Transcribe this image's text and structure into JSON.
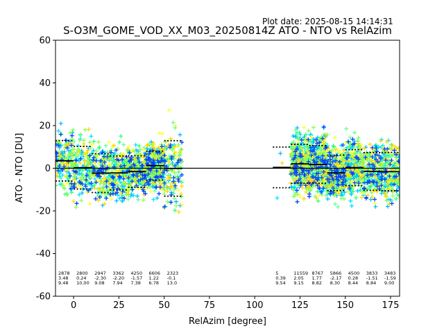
{
  "chart_data": {
    "type": "scatter",
    "title": "S-O3M_GOME_VOD_XX_M03_20250814Z ATO - NTO vs RelAzim",
    "plot_date": "Plot date: 2025-08-15 14:14:31",
    "xlabel": "RelAzim [degree]",
    "ylabel": "ATO - NTO [DU]",
    "xlim": [
      -10,
      180
    ],
    "ylim": [
      -60,
      60
    ],
    "xticks": [
      0,
      25,
      50,
      75,
      100,
      125,
      150,
      175
    ],
    "yticks": [
      -60,
      -40,
      -20,
      0,
      20,
      40,
      60
    ],
    "zero_line": 0,
    "colors": [
      "#66ff99",
      "#33ff77",
      "#00e5ff",
      "#00bfff",
      "#ffff33",
      "#ffd700",
      "#88ff55",
      "#0044ff"
    ],
    "bins": [
      {
        "x_start": -10,
        "x_end": 0,
        "count": "2878",
        "mean": "3.48",
        "std": "9.48",
        "mean_val": 3.48,
        "std_val": 9.48
      },
      {
        "x_start": 0,
        "x_end": 10,
        "count": "2800",
        "mean": "0.24",
        "std": "10.00",
        "mean_val": 0.24,
        "std_val": 10.0
      },
      {
        "x_start": 10,
        "x_end": 20,
        "count": "2947",
        "mean": "-2.30",
        "std": "9.08",
        "mean_val": -2.3,
        "std_val": 9.08
      },
      {
        "x_start": 20,
        "x_end": 30,
        "count": "3362",
        "mean": "-2.20",
        "std": "7.94",
        "mean_val": -2.2,
        "std_val": 7.94
      },
      {
        "x_start": 30,
        "x_end": 40,
        "count": "4250",
        "mean": "-1.57",
        "std": "7.38",
        "mean_val": -1.57,
        "std_val": 7.38
      },
      {
        "x_start": 40,
        "x_end": 50,
        "count": "6606",
        "mean": "1.22",
        "std": "6.78",
        "mean_val": 1.22,
        "std_val": 6.78
      },
      {
        "x_start": 50,
        "x_end": 60,
        "count": "2323",
        "mean": "-0.1",
        "std": "13.0",
        "mean_val": -0.1,
        "std_val": 13.0
      },
      {
        "x_start": 110,
        "x_end": 120,
        "count": "5",
        "mean": "0.39",
        "std": "9.54",
        "mean_val": 0.39,
        "std_val": 9.54
      },
      {
        "x_start": 120,
        "x_end": 130,
        "count": "11559",
        "mean": "2.05",
        "std": "9.15",
        "mean_val": 2.05,
        "std_val": 9.15
      },
      {
        "x_start": 130,
        "x_end": 140,
        "count": "8767",
        "mean": "1.77",
        "std": "8.82",
        "mean_val": 1.77,
        "std_val": 8.82
      },
      {
        "x_start": 140,
        "x_end": 150,
        "count": "5866",
        "mean": "-2.17",
        "std": "8.30",
        "mean_val": -2.17,
        "std_val": 8.3
      },
      {
        "x_start": 150,
        "x_end": 160,
        "count": "4500",
        "mean": "0.28",
        "std": "8.44",
        "mean_val": 0.28,
        "std_val": 8.44
      },
      {
        "x_start": 160,
        "x_end": 170,
        "count": "3833",
        "mean": "-1.51",
        "std": "8.84",
        "mean_val": -1.51,
        "std_val": 8.84
      },
      {
        "x_start": 170,
        "x_end": 180,
        "count": "3483",
        "mean": "-1.59",
        "std": "9.00",
        "mean_val": -1.59,
        "std_val": 9.0
      }
    ]
  }
}
